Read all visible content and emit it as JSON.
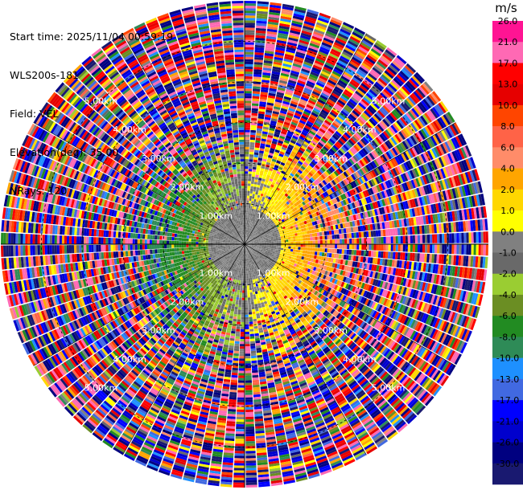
{
  "header": {
    "start_time": "Start time: 2025/11/04 00:59:19",
    "instrument": "WLS200s-181",
    "field": "Field: VEL",
    "elevation": "Elevation(deg): 35.00",
    "nrays": "NRays: 120"
  },
  "colorbar": {
    "unit": "m/s",
    "labels": [
      "26.0",
      "21.0",
      "17.0",
      "13.0",
      "10.0",
      "8.0",
      "6.0",
      "4.0",
      "2.0",
      "1.0",
      "0.0",
      "-1.0",
      "-2.0",
      "-4.0",
      "-6.0",
      "-8.0",
      "-10.0",
      "-13.0",
      "-17.0",
      "-21.0",
      "-26.0",
      "-30.0"
    ],
    "colors": [
      "#ff1493",
      "#ff69b4",
      "#ff0000",
      "#e60000",
      "#ff4500",
      "#ff6347",
      "#ff8c69",
      "#ffa500",
      "#ffd700",
      "#ffff00",
      "#808080",
      "#696969",
      "#9acd32",
      "#6b8e23",
      "#228b22",
      "#2e8b57",
      "#1e90ff",
      "#4169e1",
      "#0000ff",
      "#0000cd",
      "#000080",
      "#191970"
    ]
  },
  "chart_data": {
    "type": "ppi",
    "field": "VEL",
    "elevation_deg": 35.0,
    "nrays": 120,
    "range_ring_labels": [
      "1.00km",
      "2.00km",
      "3.00km",
      "4.00km",
      "5.00km"
    ],
    "range_rings_km": [
      1,
      2,
      3,
      4,
      5
    ],
    "spoke_step_deg": 30,
    "max_range_km": 6.0,
    "valid_data_range_km": 1.5,
    "velocity_pattern": {
      "toward_azimuth_deg": 270,
      "away_azimuth_deg": 90,
      "peak_velocity_ms": 7
    }
  }
}
